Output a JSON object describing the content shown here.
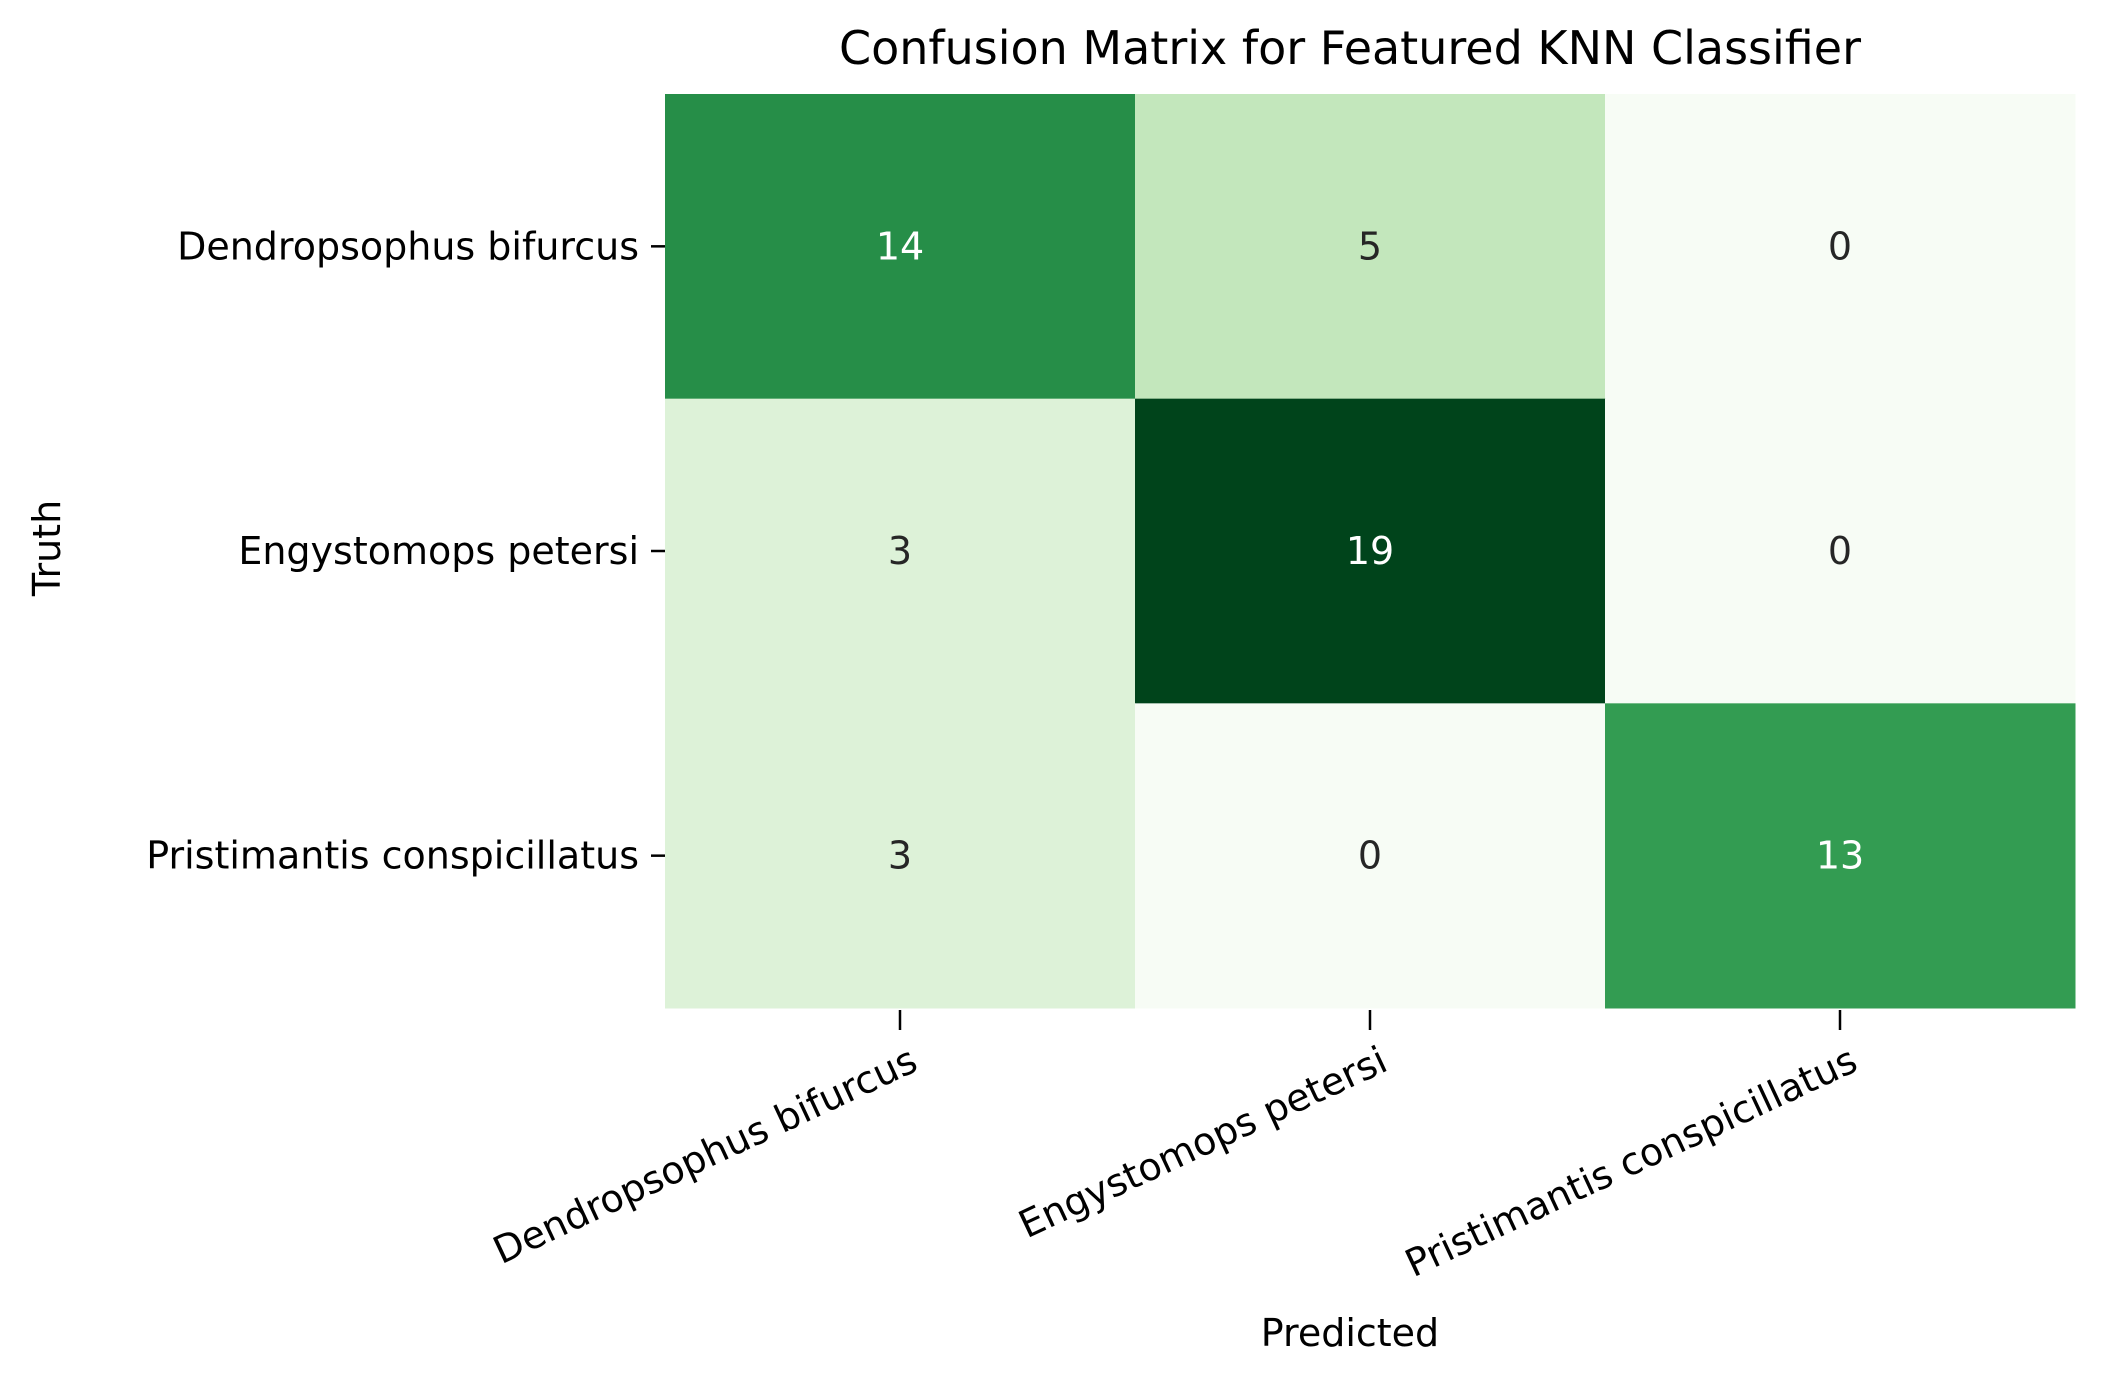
{
  "chart_data": {
    "type": "heatmap",
    "title": "Confusion Matrix for Featured KNN Classifier",
    "xlabel": "Predicted",
    "ylabel": "Truth",
    "x_categories": [
      "Dendropsophus bifurcus",
      "Engystomops petersi",
      "Pristimantis conspicillatus"
    ],
    "y_categories": [
      "Dendropsophus bifurcus",
      "Engystomops petersi",
      "Pristimantis conspicillatus"
    ],
    "values": [
      [
        14,
        5,
        0
      ],
      [
        3,
        19,
        0
      ],
      [
        3,
        0,
        13
      ]
    ],
    "colormap": "Greens",
    "value_range": [
      0,
      19
    ],
    "colorbar": false,
    "annotations": true,
    "x_tick_rotation": -25
  }
}
